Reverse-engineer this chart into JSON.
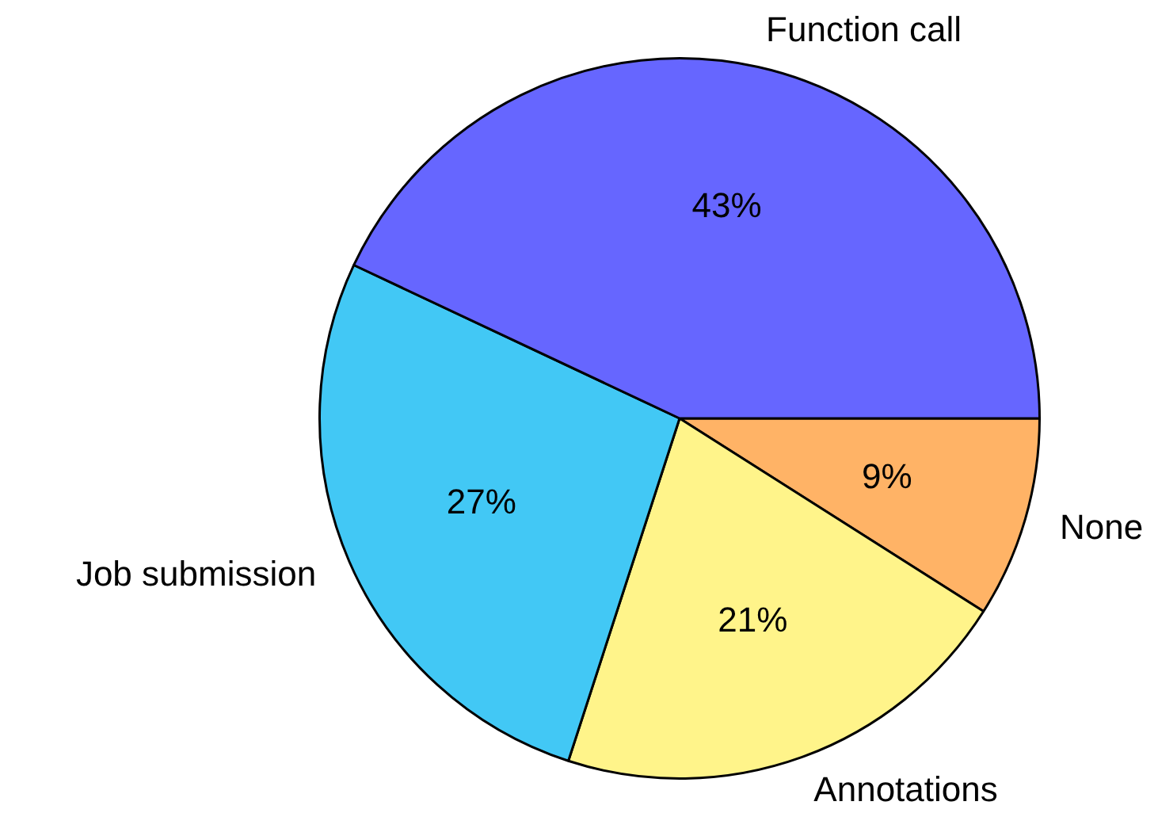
{
  "chart_data": {
    "type": "pie",
    "categories": [
      "Function call",
      "Job submission",
      "Annotations",
      "None"
    ],
    "values": [
      43,
      27,
      21,
      9
    ],
    "colors": [
      "#6666ff",
      "#42c8f5",
      "#fff48a",
      "#ffb366"
    ],
    "value_labels": [
      "43%",
      "27%",
      "21%",
      "9%"
    ],
    "legend": false
  }
}
